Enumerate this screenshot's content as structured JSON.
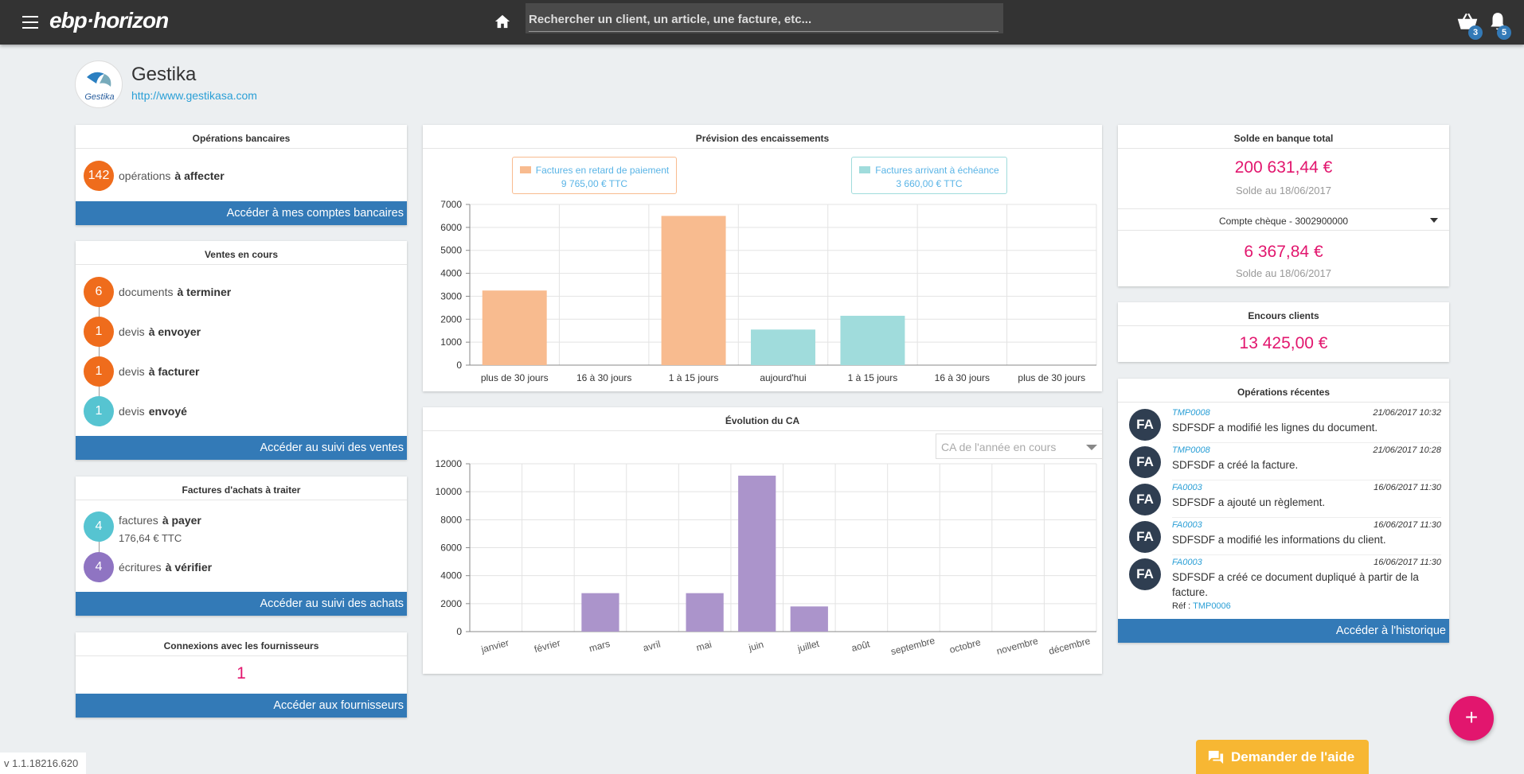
{
  "header": {
    "logo": "ebp·horizon",
    "search_placeholder": "Rechercher un client, un article, une facture, etc...",
    "cart_badge": "3",
    "notif_badge": "5"
  },
  "company": {
    "name": "Gestika",
    "url": "http://www.gestikasa.com",
    "logo_text": "Gestika"
  },
  "bank_ops": {
    "title": "Opérations bancaires",
    "count": "142",
    "text": "opérations",
    "bold": "à affecter",
    "action": "Accéder à mes comptes bancaires"
  },
  "sales": {
    "title": "Ventes en cours",
    "rows": [
      {
        "count": "6",
        "text": "documents",
        "bold": "à terminer"
      },
      {
        "count": "1",
        "text": "devis",
        "bold": "à envoyer"
      },
      {
        "count": "1",
        "text": "devis",
        "bold": "à facturer"
      },
      {
        "count": "1",
        "text": "devis",
        "bold": "envoyé"
      }
    ],
    "action": "Accéder au suivi des ventes"
  },
  "purchases": {
    "title": "Factures d'achats à traiter",
    "rows": [
      {
        "count": "4",
        "text": "factures",
        "bold": "à payer",
        "sub": "176,64 € TTC"
      },
      {
        "count": "4",
        "text": "écritures",
        "bold": "à vérifier"
      }
    ],
    "action": "Accéder au suivi des achats"
  },
  "suppliers": {
    "title": "Connexions avec les fournisseurs",
    "count": "1",
    "action": "Accéder aux fournisseurs"
  },
  "cash_forecast": {
    "title": "Prévision des encaissements",
    "legend": [
      {
        "label": "Factures en retard de paiement",
        "amount": "9 765,00 € TTC",
        "color": "#f8bb8f"
      },
      {
        "label": "Factures arrivant à échéance",
        "amount": "3 660,00 € TTC",
        "color": "#a0dcdc"
      }
    ]
  },
  "ca": {
    "title": "Évolution du CA",
    "select": "CA de l'année en cours"
  },
  "bank_balance": {
    "title": "Solde en banque total",
    "total": "200 631,44 €",
    "total_date": "Solde au 18/06/2017",
    "account": "Compte chèque - 3002900000",
    "account_amount": "6 367,84 €",
    "account_date": "Solde au 18/06/2017"
  },
  "outstanding": {
    "title": "Encours clients",
    "amount": "13 425,00 €"
  },
  "recent_ops": {
    "title": "Opérations récentes",
    "items": [
      {
        "avatar": "FA",
        "ref": "TMP0008",
        "date": "21/06/2017 10:32",
        "text": "SDFSDF a modifié les lignes du document."
      },
      {
        "avatar": "FA",
        "ref": "TMP0008",
        "date": "21/06/2017 10:28",
        "text": "SDFSDF a créé la facture."
      },
      {
        "avatar": "FA",
        "ref": "FA0003",
        "date": "16/06/2017 11:30",
        "text": "SDFSDF a ajouté un règlement."
      },
      {
        "avatar": "FA",
        "ref": "FA0003",
        "date": "16/06/2017 11:30",
        "text": "SDFSDF a modifié les informations du client."
      },
      {
        "avatar": "FA",
        "ref": "FA0003",
        "date": "16/06/2017 11:30",
        "text": "SDFSDF a créé ce document dupliqué à partir de la facture."
      }
    ],
    "ref_label": "Réf :",
    "ref_value": "TMP0006",
    "action": "Accéder à l'historique"
  },
  "fab_label": "+",
  "help_label": "Demander de l'aide",
  "version": "v 1.1.18216.620",
  "chart_data": [
    {
      "type": "bar",
      "title": "Prévision des encaissements",
      "categories": [
        "plus de 30 jours",
        "16 à 30 jours",
        "1 à 15 jours",
        "aujourd'hui",
        "1 à 15 jours",
        "16 à 30 jours",
        "plus de 30 jours"
      ],
      "values": [
        3250,
        0,
        6500,
        1550,
        2150,
        0,
        0
      ],
      "colors": [
        "#f8bb8f",
        "#f8bb8f",
        "#f8bb8f",
        "#a0dcdc",
        "#a0dcdc",
        "#a0dcdc",
        "#a0dcdc"
      ],
      "ylim": [
        0,
        7000
      ],
      "yticks": [
        0,
        1000,
        2000,
        3000,
        4000,
        5000,
        6000,
        7000
      ],
      "grid": true
    },
    {
      "type": "bar",
      "title": "Évolution du CA",
      "categories": [
        "janvier",
        "février",
        "mars",
        "avril",
        "mai",
        "juin",
        "juillet",
        "août",
        "septembre",
        "octobre",
        "novembre",
        "décembre"
      ],
      "values": [
        0,
        0,
        2750,
        0,
        2750,
        11150,
        1800,
        0,
        0,
        0,
        0,
        0
      ],
      "color": "#ab94cb",
      "ylim": [
        0,
        12000
      ],
      "yticks": [
        0,
        2000,
        4000,
        6000,
        8000,
        10000,
        12000
      ],
      "grid": true
    }
  ]
}
